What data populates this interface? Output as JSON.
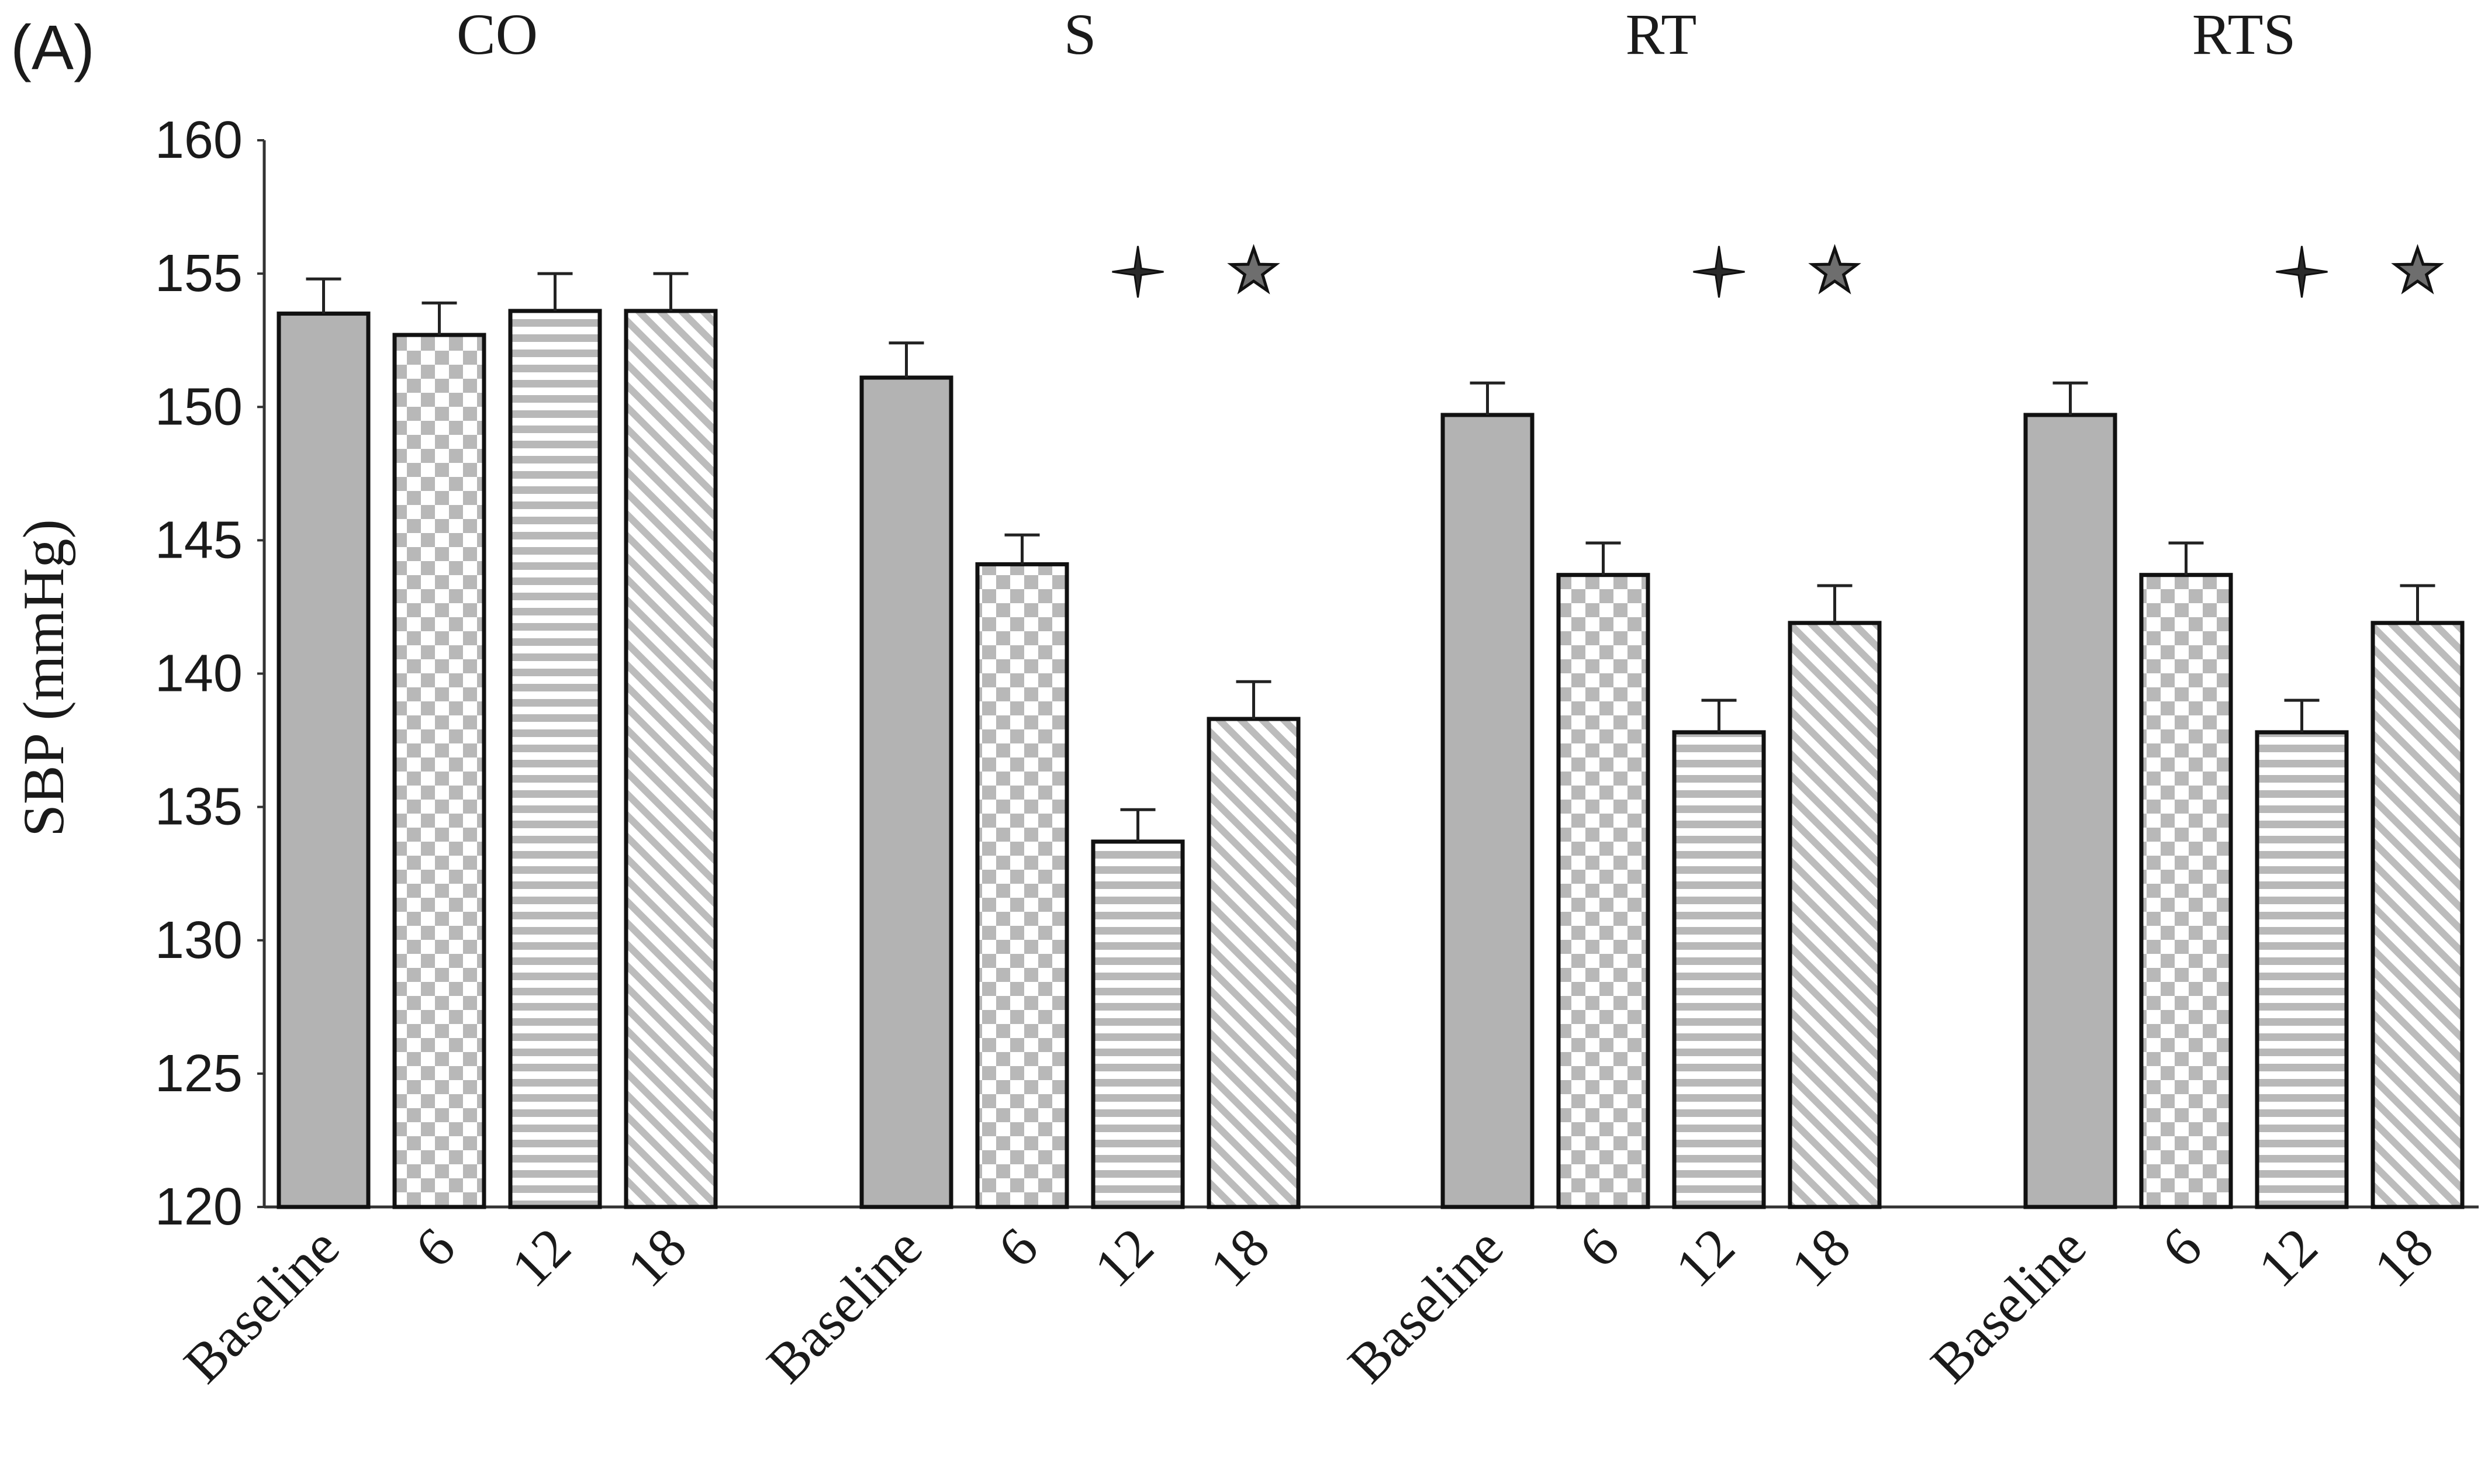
{
  "panel_label": "(A)",
  "chart_data": {
    "type": "bar",
    "ylabel": "SBP (mmHg)",
    "xlabel": "",
    "ylim": [
      120,
      160
    ],
    "yticks": [
      120,
      125,
      130,
      135,
      140,
      145,
      150,
      155,
      160
    ],
    "grid": false,
    "groups": [
      {
        "name": "CO",
        "categories": [
          "Baseline",
          "6",
          "12",
          "18"
        ],
        "values": [
          153.5,
          152.7,
          153.6,
          153.6
        ],
        "errors": [
          1.3,
          1.2,
          1.4,
          1.4
        ],
        "markers": []
      },
      {
        "name": "S",
        "categories": [
          "Baseline",
          "6",
          "12",
          "18"
        ],
        "values": [
          151.1,
          144.1,
          133.7,
          138.3
        ],
        "errors": [
          1.3,
          1.1,
          1.2,
          1.4
        ],
        "markers": [
          "cross-star",
          "star"
        ]
      },
      {
        "name": "RT",
        "categories": [
          "Baseline",
          "6",
          "12",
          "18"
        ],
        "values": [
          149.7,
          143.7,
          137.8,
          141.9
        ],
        "errors": [
          1.2,
          1.2,
          1.2,
          1.4
        ],
        "markers": [
          "cross-star",
          "star"
        ]
      },
      {
        "name": "RTS",
        "categories": [
          "Baseline",
          "6",
          "12",
          "18"
        ],
        "values": [
          149.7,
          143.7,
          137.8,
          141.9
        ],
        "errors": [
          1.2,
          1.2,
          1.2,
          1.4
        ],
        "markers": [
          "cross-star",
          "star"
        ]
      }
    ],
    "bar_patterns": [
      "solid-gray",
      "checkerboard",
      "horizontal-stripes",
      "diagonal-stripes"
    ],
    "colors": {
      "solid_fill": "#b3b3b3",
      "pattern_gray": "#b8b8b8",
      "outline": "#111111",
      "star_fill": "#6e6e6e"
    }
  }
}
